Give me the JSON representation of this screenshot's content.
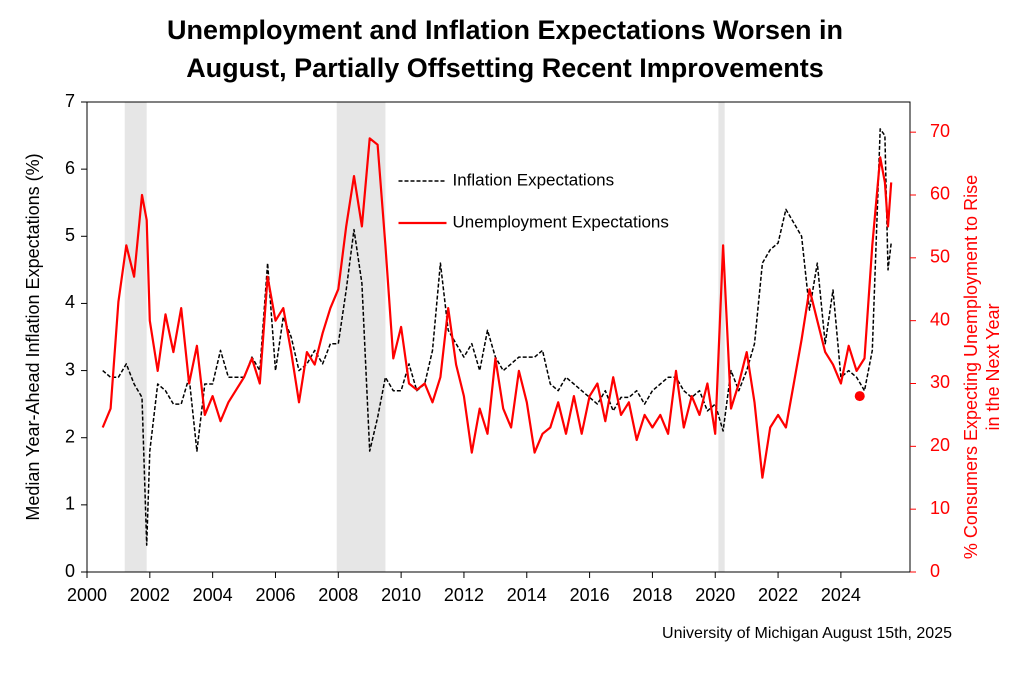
{
  "chart_data": {
    "type": "line",
    "title": [
      "Unemployment and Inflation Expectations Worsen in",
      "August, Partially Offsetting Recent Improvements"
    ],
    "ylabel": "Median Year-Ahead Inflation Expectations (%)",
    "y2label": [
      "% Consumers Expecting Unemployment to Rise",
      "in the Next Year"
    ],
    "source": "University of Michigan August 15th, 2025",
    "legend": "upper center",
    "xlim": [
      2000,
      2026.2
    ],
    "xticks": [
      2000,
      2002,
      2004,
      2006,
      2008,
      2010,
      2012,
      2014,
      2016,
      2018,
      2020,
      2022,
      2024
    ],
    "ylim": [
      0,
      7
    ],
    "yticks": [
      0,
      1,
      2,
      3,
      4,
      5,
      6,
      7
    ],
    "y2lim": [
      0,
      74.8
    ],
    "y2ticks": [
      0,
      10,
      20,
      30,
      40,
      50,
      60,
      70
    ],
    "y2color": "#ff0000",
    "shaded_regions": [
      [
        2001.2,
        2001.9
      ],
      [
        2007.95,
        2009.5
      ],
      [
        2020.1,
        2020.3
      ]
    ],
    "shade_color": "#e6e6e6",
    "x": [
      2000.5,
      2000.75,
      2001,
      2001.25,
      2001.5,
      2001.75,
      2001.9,
      2002,
      2002.25,
      2002.5,
      2002.75,
      2003,
      2003.25,
      2003.5,
      2003.75,
      2004,
      2004.25,
      2004.5,
      2004.75,
      2005,
      2005.25,
      2005.5,
      2005.75,
      2006,
      2006.25,
      2006.5,
      2006.75,
      2007,
      2007.25,
      2007.5,
      2007.75,
      2008,
      2008.25,
      2008.5,
      2008.75,
      2009,
      2009.25,
      2009.5,
      2009.75,
      2010,
      2010.25,
      2010.5,
      2010.75,
      2011,
      2011.25,
      2011.5,
      2011.75,
      2012,
      2012.25,
      2012.5,
      2012.75,
      2013,
      2013.25,
      2013.5,
      2013.75,
      2014,
      2014.25,
      2014.5,
      2014.75,
      2015,
      2015.25,
      2015.5,
      2015.75,
      2016,
      2016.25,
      2016.5,
      2016.75,
      2017,
      2017.25,
      2017.5,
      2017.75,
      2018,
      2018.25,
      2018.5,
      2018.75,
      2019,
      2019.25,
      2019.5,
      2019.75,
      2020,
      2020.25,
      2020.5,
      2020.75,
      2021,
      2021.25,
      2021.5,
      2021.75,
      2022,
      2022.25,
      2022.5,
      2022.75,
      2023,
      2023.25,
      2023.5,
      2023.75,
      2024,
      2024.25,
      2024.5,
      2024.75,
      2025,
      2025.25,
      2025.4,
      2025.5,
      2025.6
    ],
    "series": [
      {
        "name": "Inflation Expectations",
        "color": "#000000",
        "linestyle": "dashed",
        "values": [
          3.0,
          2.9,
          2.9,
          3.1,
          2.8,
          2.6,
          0.4,
          1.8,
          2.8,
          2.7,
          2.5,
          2.5,
          2.9,
          1.8,
          2.8,
          2.8,
          3.3,
          2.9,
          2.9,
          2.9,
          3.2,
          3.0,
          4.6,
          3.0,
          3.8,
          3.5,
          3.0,
          3.1,
          3.3,
          3.1,
          3.4,
          3.4,
          4.2,
          5.1,
          4.3,
          1.8,
          2.3,
          2.9,
          2.7,
          2.7,
          3.1,
          2.7,
          2.8,
          3.3,
          4.6,
          3.6,
          3.4,
          3.2,
          3.4,
          3.0,
          3.6,
          3.2,
          3.0,
          3.1,
          3.2,
          3.2,
          3.2,
          3.3,
          2.8,
          2.7,
          2.9,
          2.8,
          2.7,
          2.6,
          2.5,
          2.7,
          2.4,
          2.6,
          2.6,
          2.7,
          2.5,
          2.7,
          2.8,
          2.9,
          2.9,
          2.7,
          2.6,
          2.7,
          2.4,
          2.5,
          2.1,
          3.0,
          2.7,
          3.0,
          3.4,
          4.6,
          4.8,
          4.9,
          5.4,
          5.2,
          5.0,
          3.9,
          4.6,
          3.4,
          4.2,
          2.9,
          3.0,
          2.9,
          2.7,
          3.3,
          6.6,
          6.5,
          4.5,
          4.9
        ]
      },
      {
        "name": "Unemployment Expectations",
        "color": "#ff0000",
        "axis": "y2",
        "linestyle": "solid",
        "values": [
          23,
          26,
          43,
          52,
          47,
          60,
          56,
          40,
          32,
          41,
          35,
          42,
          30,
          36,
          25,
          28,
          24,
          27,
          29,
          31,
          34,
          30,
          47,
          40,
          42,
          35,
          27,
          35,
          33,
          38,
          42,
          45,
          55,
          63,
          55,
          69,
          68,
          52,
          34,
          39,
          30,
          29,
          30,
          27,
          31,
          42,
          33,
          28,
          19,
          26,
          22,
          34,
          26,
          23,
          32,
          27,
          19,
          22,
          23,
          27,
          22,
          28,
          22,
          28,
          30,
          24,
          31,
          25,
          27,
          21,
          25,
          23,
          25,
          22,
          32,
          23,
          28,
          25,
          30,
          22,
          52,
          26,
          30,
          35,
          27,
          15,
          23,
          25,
          23,
          30,
          37,
          45,
          40,
          35,
          33,
          30,
          36,
          32,
          34,
          52,
          66,
          62,
          55,
          62
        ]
      }
    ],
    "marker": {
      "x": 2024.6,
      "value": 28,
      "axis": "y2",
      "color": "#ff0000"
    }
  }
}
